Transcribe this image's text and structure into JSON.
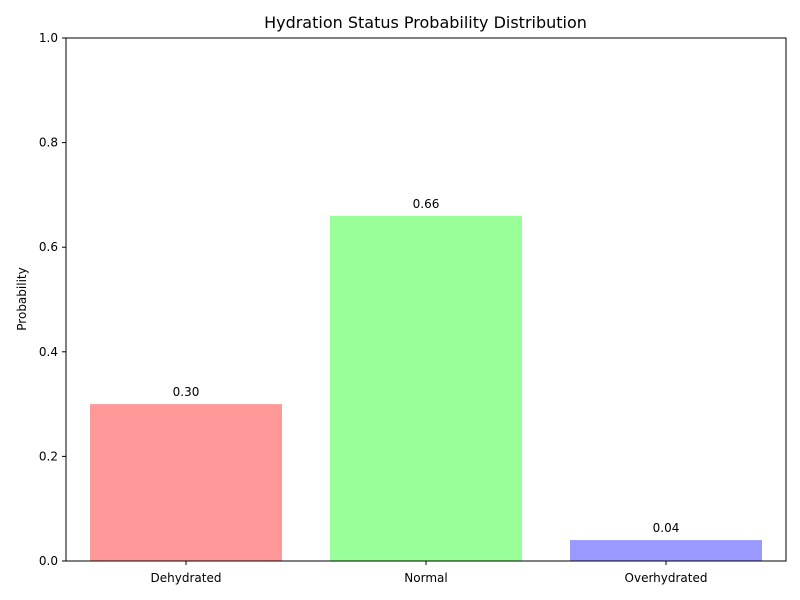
{
  "chart_data": {
    "type": "bar",
    "title": "Hydration Status Probability Distribution",
    "xlabel": "",
    "ylabel": "Probability",
    "categories": [
      "Dehydrated",
      "Normal",
      "Overhydrated"
    ],
    "values": [
      0.3,
      0.66,
      0.04
    ],
    "value_labels": [
      "0.30",
      "0.66",
      "0.04"
    ],
    "colors": [
      "#ff9999",
      "#99ff99",
      "#9999ff"
    ],
    "ylim": [
      0,
      1.0
    ],
    "yticks": [
      0.0,
      0.2,
      0.4,
      0.6,
      0.8,
      1.0
    ],
    "ytick_labels": [
      "0.0",
      "0.2",
      "0.4",
      "0.6",
      "0.8",
      "1.0"
    ],
    "grid": false,
    "legend": "none"
  }
}
